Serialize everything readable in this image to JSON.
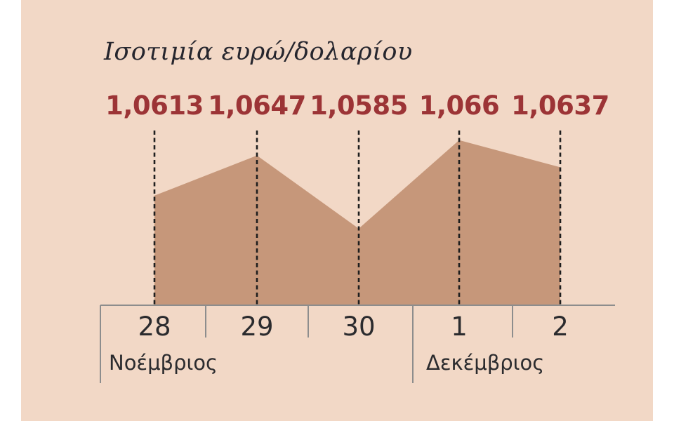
{
  "page": {
    "background": "#ffffff",
    "panel_background": "#f2d8c6"
  },
  "chart_data": {
    "type": "area",
    "title": "Ισοτιμία ευρώ/δολαρίου",
    "x_labels": [
      "28",
      "29",
      "30",
      "1",
      "2"
    ],
    "x_groups": [
      {
        "label": "Νοέμβριος",
        "start_index": 0,
        "end_index": 2
      },
      {
        "label": "Δεκέμβριος",
        "start_index": 3,
        "end_index": 4
      }
    ],
    "values": [
      1.0613,
      1.0647,
      1.0585,
      1.066,
      1.0637
    ],
    "value_labels": [
      "1,0613",
      "1,0647",
      "1,0585",
      "1,066",
      "1,0637"
    ],
    "ylim": [
      1.052,
      1.067
    ],
    "grid": "dashed vertical line at each data point",
    "legend": "none",
    "xlabel": "",
    "ylabel": "",
    "colors": {
      "background": "#f2d8c6",
      "area_fill": "#c6977a",
      "dashed_line": "#1e1e1e",
      "axis_line": "#8d8d8d",
      "value_text": "#9c3436",
      "title_text": "#26262e",
      "axis_text": "#2b2b2e"
    }
  }
}
